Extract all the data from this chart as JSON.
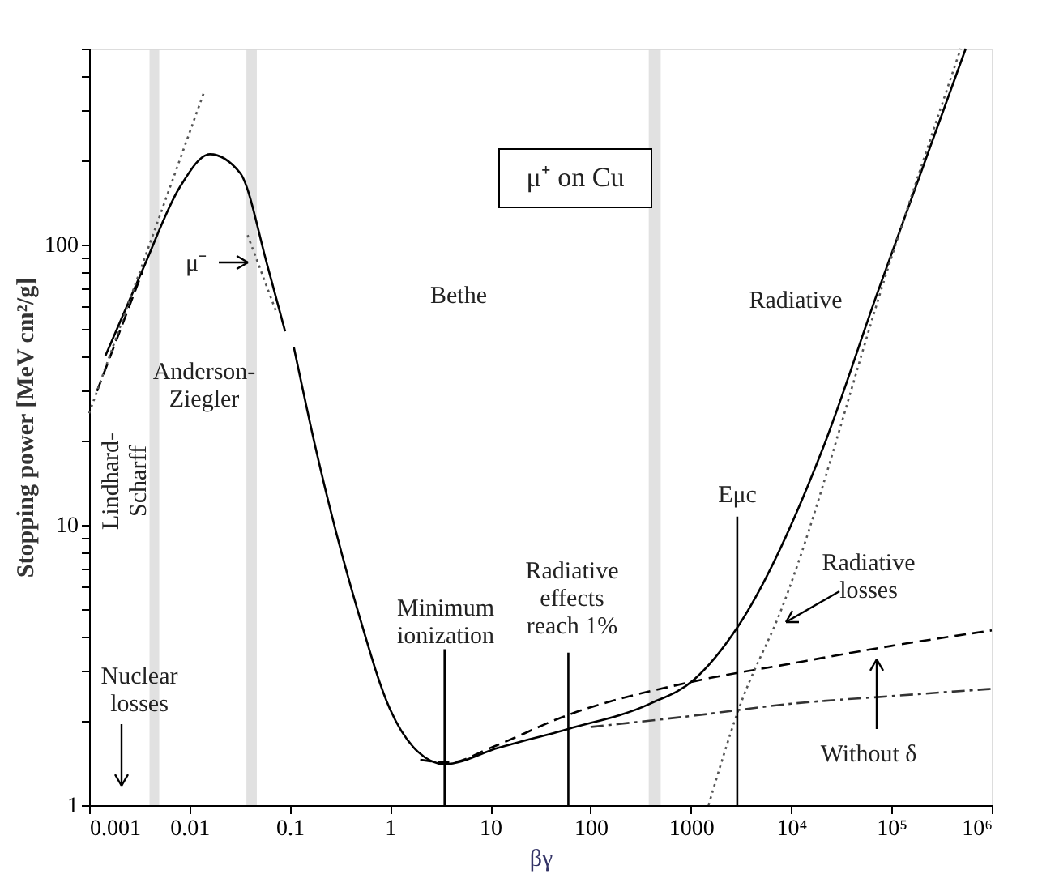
{
  "chart_data": {
    "type": "line",
    "title": "μ⁺ on Cu",
    "xlabel": "βγ",
    "ylabel": "Stopping power [MeV cm²/g]",
    "xlim": [
      0.001,
      1000000
    ],
    "ylim": [
      1,
      500
    ],
    "log": "xy",
    "grid": false,
    "marker": "none",
    "xticks": [
      0.001,
      0.01,
      0.1,
      1,
      10,
      100,
      1000,
      {
        "value": 10000,
        "label": "10⁴"
      },
      {
        "value": 100000,
        "label": "10⁵"
      },
      {
        "value": 1000000,
        "label": "10⁶"
      }
    ],
    "yticks": [
      1,
      {
        "value": 2,
        "label": null
      },
      {
        "value": 3,
        "label": null
      },
      {
        "value": 4,
        "label": null
      },
      {
        "value": 5,
        "label": null
      },
      {
        "value": 6,
        "label": null
      },
      {
        "value": 7,
        "label": null
      },
      {
        "value": 8,
        "label": null
      },
      {
        "value": 9,
        "label": null
      },
      10,
      {
        "value": 20,
        "label": null
      },
      {
        "value": 30,
        "label": null
      },
      {
        "value": 40,
        "label": null
      },
      {
        "value": 50,
        "label": null
      },
      {
        "value": 60,
        "label": null
      },
      {
        "value": 70,
        "label": null
      },
      {
        "value": 80,
        "label": null
      },
      {
        "value": 90,
        "label": null
      },
      100,
      {
        "value": 200,
        "label": null
      },
      {
        "value": 300,
        "label": null
      },
      {
        "value": 400,
        "label": null
      },
      {
        "value": 500,
        "label": null
      }
    ],
    "series": [
      {
        "color": "#000000",
        "line_style": "solid",
        "x": [
          0.00145,
          0.0034,
          0.008,
          0.016,
          0.032,
          0.06,
          0.09
        ],
        "values": [
          40,
          81,
          160,
          210,
          180,
          84,
          49
        ]
      },
      {
        "color": "#000000",
        "line_style": "solid",
        "x": [
          0.11,
          0.18,
          0.48,
          1.0,
          1.9,
          3.5,
          12,
          60,
          390,
          1070,
          2900,
          21000,
          70000,
          550000
        ],
        "values": [
          43,
          19,
          4.9,
          2.2,
          1.55,
          1.4,
          1.6,
          1.87,
          2.3,
          2.8,
          4.3,
          19,
          65,
          500
        ]
      },
      {
        "color": "#000000",
        "line_style": "dashed",
        "x": [
          0.0012,
          0.0034
        ],
        "values": [
          30,
          80
        ]
      },
      {
        "color": "#000000",
        "line_style": "dashed",
        "x": [
          2,
          4,
          10,
          60,
          1000,
          10000,
          100000,
          1000000
        ],
        "values": [
          1.45,
          1.42,
          1.6,
          2.1,
          2.75,
          3.2,
          3.7,
          4.2
        ]
      },
      {
        "color": "#333333",
        "line_style": "dashdot",
        "x": [
          100,
          1000,
          10000,
          100000,
          1000000
        ],
        "values": [
          1.9,
          2.08,
          2.3,
          2.45,
          2.6
        ]
      },
      {
        "color": "#555555",
        "line_style": "dotted",
        "x": [
          0.001,
          0.014
        ],
        "values": [
          25,
          350
        ]
      },
      {
        "color": "#555555",
        "line_style": "dotted",
        "x": [
          0.038,
          0.074
        ],
        "values": [
          108,
          57
        ]
      },
      {
        "color": "#555555",
        "line_style": "dotted",
        "x": [
          1500,
          3000,
          8000,
          100000,
          490000
        ],
        "values": [
          1,
          2.2,
          5,
          90,
          500
        ]
      },
      {
        "color": "#000000",
        "line_style": "solid",
        "x": [
          3.5,
          3.5
        ],
        "values": [
          1,
          3.6
        ]
      },
      {
        "color": "#000000",
        "line_style": "solid",
        "x": [
          60,
          60
        ],
        "values": [
          1,
          3.5
        ]
      },
      {
        "color": "#000000",
        "line_style": "solid",
        "x": [
          2900,
          2900
        ],
        "values": [
          1,
          10.7
        ]
      }
    ],
    "bands": [
      {
        "axis": "x",
        "from": 0.004,
        "to": 0.005,
        "color": "#d9d9d9"
      },
      {
        "axis": "x",
        "from": 0.037,
        "to": 0.047,
        "color": "#d9d9d9"
      },
      {
        "axis": "x",
        "from": 380,
        "to": 500,
        "color": "#d9d9d9"
      }
    ],
    "annotations": [
      "Lindhard-\nScharff",
      "Anderson-\nZiegler",
      "μ⁻",
      "Bethe",
      "Radiative",
      "Nuclear\nlosses",
      "Minimum\nionization",
      "Radiative\neffects\nreach 1%",
      "Eμc",
      "Radiative\nlosses",
      "Without δ"
    ]
  }
}
